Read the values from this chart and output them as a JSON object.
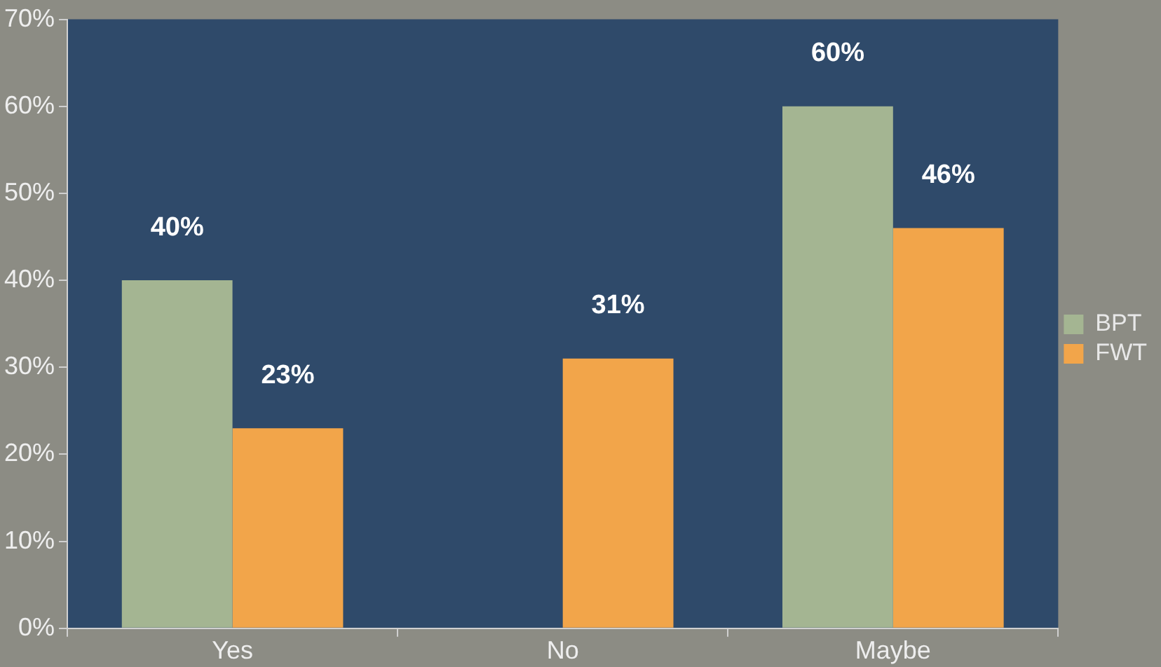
{
  "chart_data": {
    "type": "bar",
    "categories": [
      "Yes",
      "No",
      "Maybe"
    ],
    "series": [
      {
        "name": "BPT",
        "color": "#a4b592",
        "values": [
          40,
          null,
          60
        ],
        "value_labels": [
          "40%",
          null,
          "60%"
        ]
      },
      {
        "name": "FWT",
        "color": "#f2a54a",
        "values": [
          23,
          31,
          46
        ],
        "value_labels": [
          "23%",
          "31%",
          "46%"
        ]
      }
    ],
    "ylim": [
      0,
      70
    ],
    "yticks": [
      {
        "value": 0,
        "label": "0%"
      },
      {
        "value": 10,
        "label": "10%"
      },
      {
        "value": 20,
        "label": "20%"
      },
      {
        "value": 30,
        "label": "30%"
      },
      {
        "value": 40,
        "label": "40%"
      },
      {
        "value": 50,
        "label": "50%"
      },
      {
        "value": 60,
        "label": "60%"
      },
      {
        "value": 70,
        "label": "70%"
      }
    ],
    "grid": false,
    "legend": "right"
  }
}
